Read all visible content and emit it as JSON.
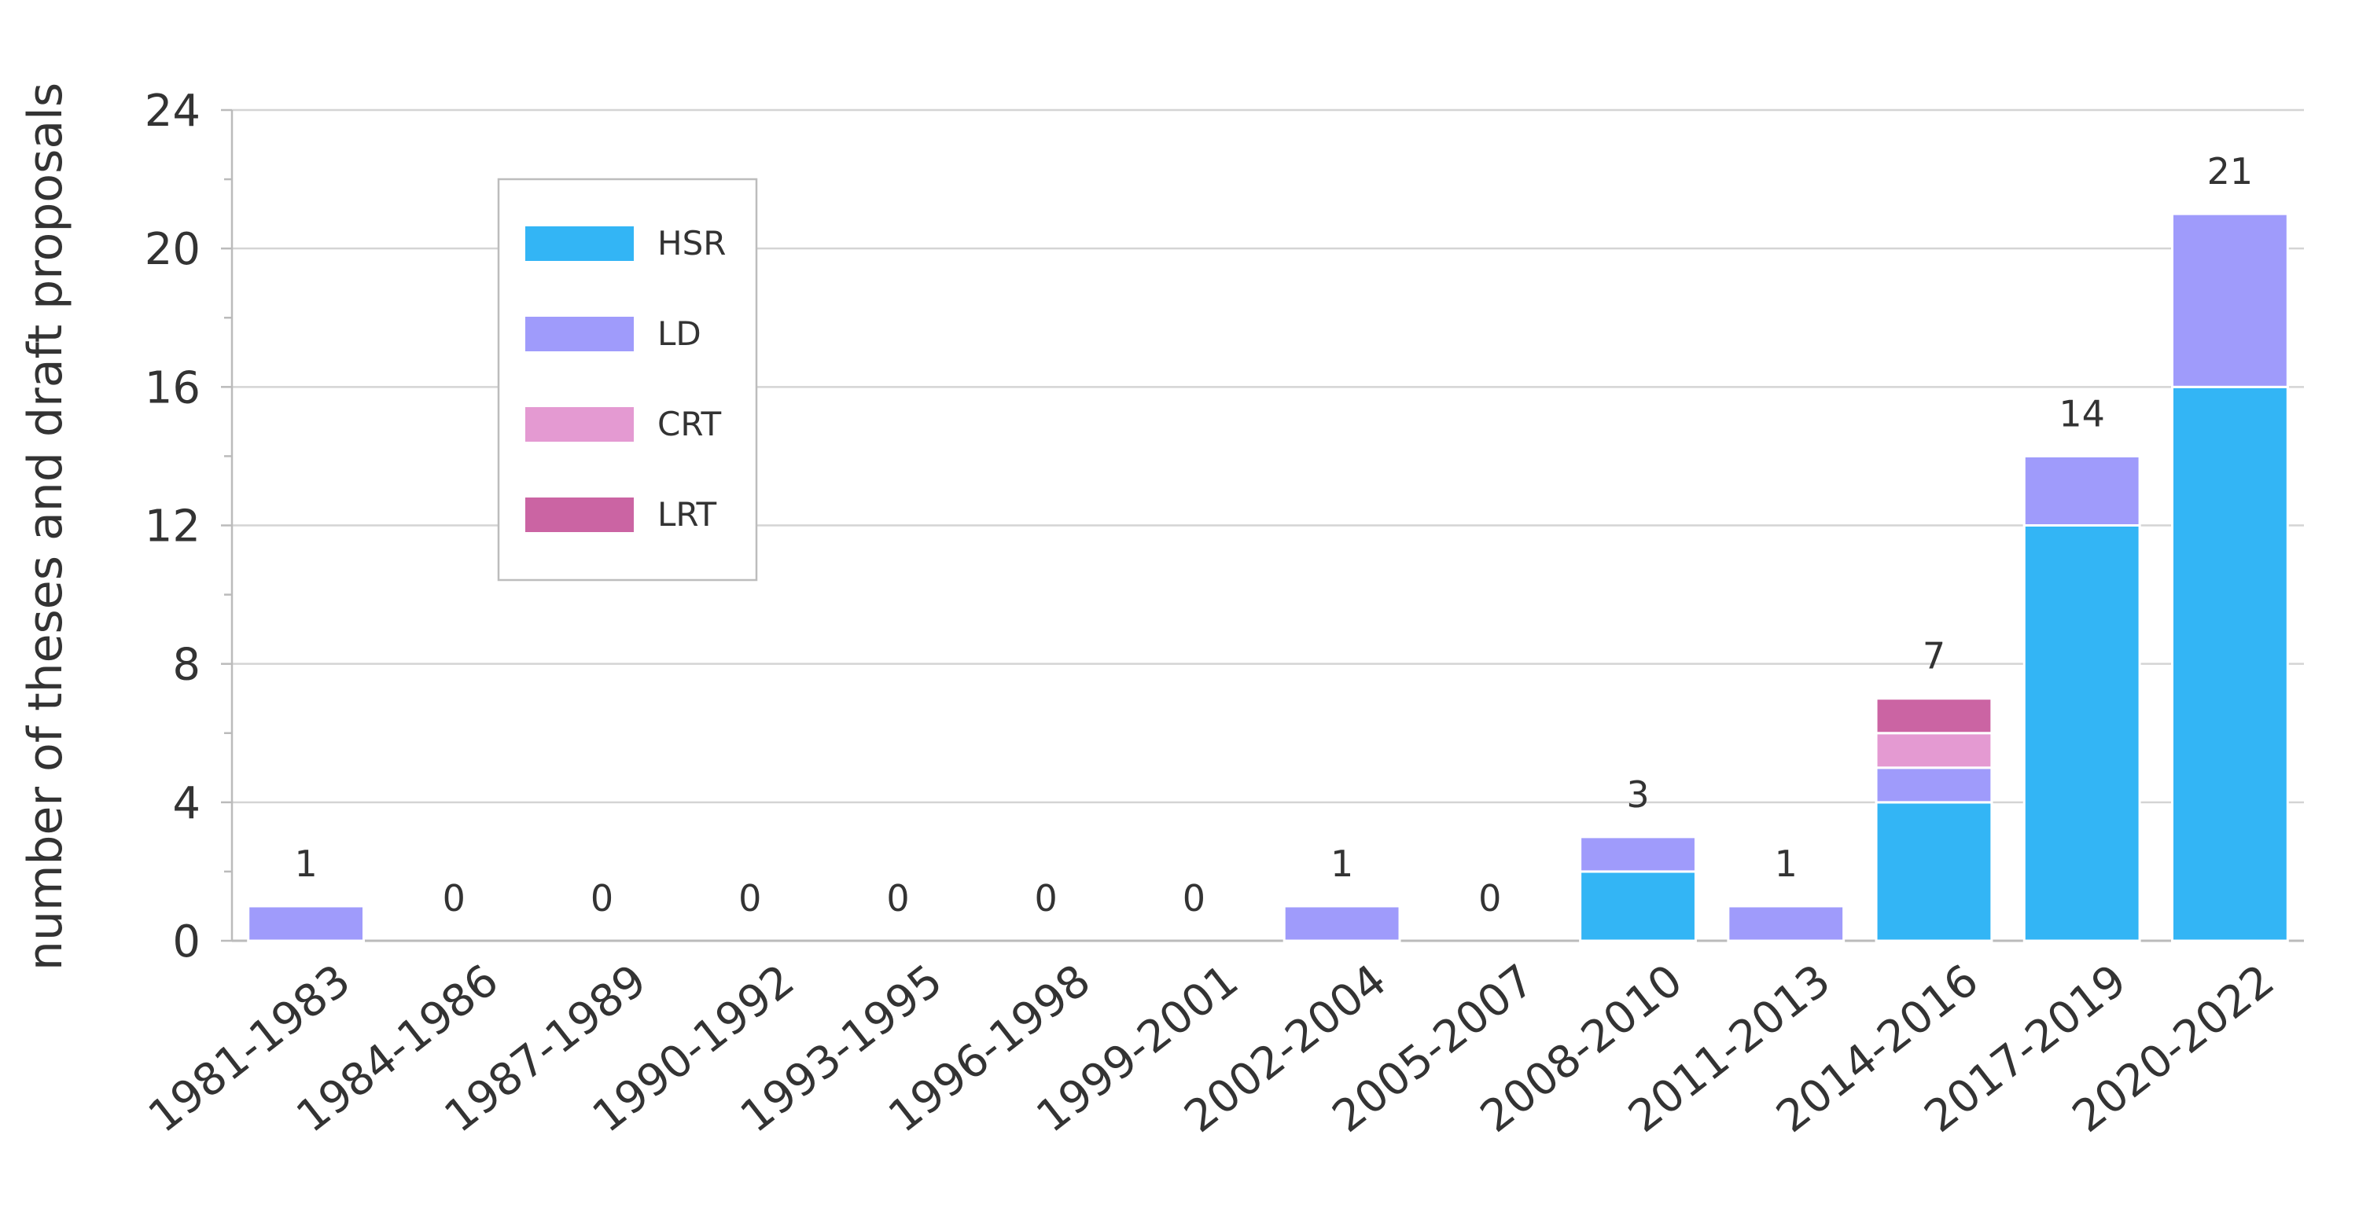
{
  "chart_data": {
    "type": "bar",
    "stacked": true,
    "title": "",
    "xlabel": "",
    "ylabel": "number of theses and draft proposals",
    "ylim": [
      0,
      24
    ],
    "yticks": [
      0,
      4,
      8,
      12,
      16,
      20,
      24
    ],
    "grid": true,
    "legend_position": "top-left",
    "categories": [
      "1981-1983",
      "1984-1986",
      "1987-1989",
      "1990-1992",
      "1993-1995",
      "1996-1998",
      "1999-2001",
      "2002-2004",
      "2005-2007",
      "2008-2010",
      "2011-2013",
      "2014-2016",
      "2017-2019",
      "2020-2022"
    ],
    "series": [
      {
        "name": "HSR",
        "color": "#33b5f5",
        "values": [
          0,
          0,
          0,
          0,
          0,
          0,
          0,
          0,
          0,
          2,
          0,
          4,
          12,
          16
        ]
      },
      {
        "name": "LD",
        "color": "#9f9bfb",
        "values": [
          1,
          0,
          0,
          0,
          0,
          0,
          0,
          1,
          0,
          1,
          1,
          1,
          2,
          5
        ]
      },
      {
        "name": "CRT",
        "color": "#e49ad2",
        "values": [
          0,
          0,
          0,
          0,
          0,
          0,
          0,
          0,
          0,
          0,
          0,
          1,
          0,
          0
        ]
      },
      {
        "name": "LRT",
        "color": "#cb64a3",
        "values": [
          0,
          0,
          0,
          0,
          0,
          0,
          0,
          0,
          0,
          0,
          0,
          1,
          0,
          0
        ]
      }
    ],
    "totals": [
      1,
      0,
      0,
      0,
      0,
      0,
      0,
      1,
      0,
      3,
      1,
      7,
      14,
      21
    ]
  }
}
